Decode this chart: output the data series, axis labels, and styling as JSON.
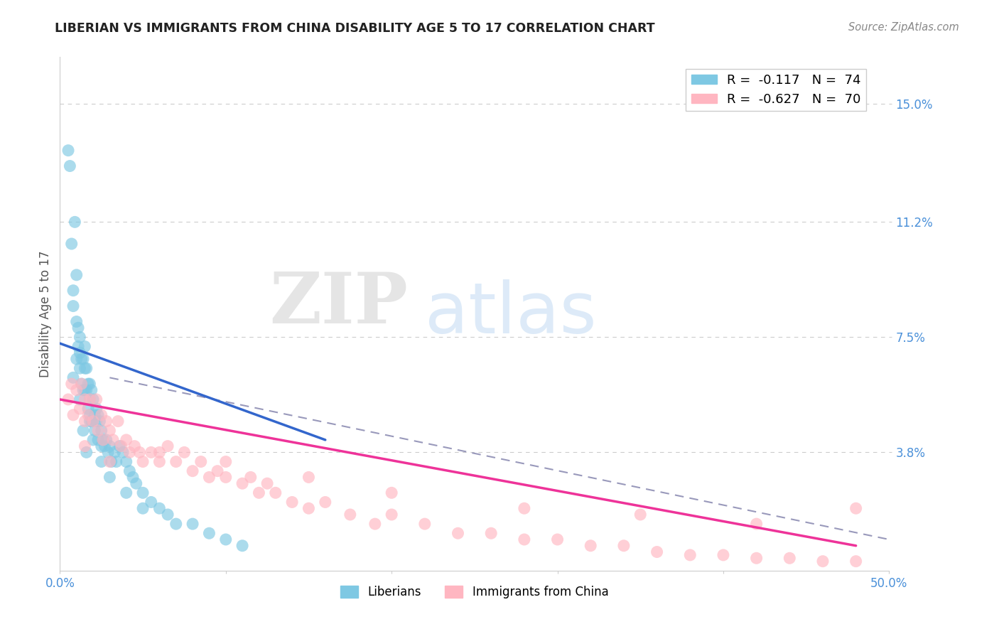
{
  "title": "LIBERIAN VS IMMIGRANTS FROM CHINA DISABILITY AGE 5 TO 17 CORRELATION CHART",
  "source": "Source: ZipAtlas.com",
  "ylabel": "Disability Age 5 to 17",
  "xlim": [
    0.0,
    0.5
  ],
  "ylim": [
    0.0,
    0.165
  ],
  "yticks": [
    0.038,
    0.075,
    0.112,
    0.15
  ],
  "ytick_labels": [
    "3.8%",
    "7.5%",
    "11.2%",
    "15.0%"
  ],
  "xticks": [
    0.0,
    0.1,
    0.2,
    0.3,
    0.4,
    0.5
  ],
  "xtick_labels": [
    "0.0%",
    "",
    "",
    "",
    "",
    "50.0%"
  ],
  "color_blue": "#7EC8E3",
  "color_pink": "#FFB6C1",
  "color_blue_line": "#3366CC",
  "color_pink_line": "#EE3399",
  "color_dashed": "#9999BB",
  "watermark_zip": "ZIP",
  "watermark_atlas": "atlas",
  "blue_line_x": [
    0.0,
    0.16
  ],
  "blue_line_y": [
    0.073,
    0.042
  ],
  "pink_line_x": [
    0.0,
    0.48
  ],
  "pink_line_y": [
    0.055,
    0.008
  ],
  "dashed_line_x": [
    0.03,
    0.5
  ],
  "dashed_line_y": [
    0.062,
    0.01
  ],
  "liberian_x": [
    0.005,
    0.006,
    0.007,
    0.008,
    0.008,
    0.009,
    0.01,
    0.01,
    0.011,
    0.011,
    0.012,
    0.012,
    0.012,
    0.013,
    0.013,
    0.014,
    0.014,
    0.015,
    0.015,
    0.015,
    0.016,
    0.016,
    0.017,
    0.017,
    0.018,
    0.018,
    0.018,
    0.019,
    0.019,
    0.02,
    0.02,
    0.021,
    0.021,
    0.022,
    0.022,
    0.023,
    0.023,
    0.024,
    0.025,
    0.025,
    0.026,
    0.027,
    0.028,
    0.029,
    0.03,
    0.031,
    0.033,
    0.034,
    0.036,
    0.038,
    0.04,
    0.042,
    0.044,
    0.046,
    0.05,
    0.055,
    0.06,
    0.065,
    0.07,
    0.08,
    0.09,
    0.1,
    0.11,
    0.008,
    0.01,
    0.012,
    0.014,
    0.016,
    0.018,
    0.02,
    0.025,
    0.03,
    0.04,
    0.05
  ],
  "liberian_y": [
    0.135,
    0.13,
    0.105,
    0.09,
    0.085,
    0.112,
    0.095,
    0.08,
    0.078,
    0.072,
    0.07,
    0.075,
    0.065,
    0.068,
    0.06,
    0.068,
    0.058,
    0.072,
    0.065,
    0.058,
    0.065,
    0.058,
    0.06,
    0.052,
    0.06,
    0.055,
    0.05,
    0.058,
    0.048,
    0.055,
    0.048,
    0.05,
    0.045,
    0.052,
    0.048,
    0.05,
    0.042,
    0.048,
    0.045,
    0.04,
    0.042,
    0.04,
    0.042,
    0.038,
    0.04,
    0.035,
    0.038,
    0.035,
    0.04,
    0.038,
    0.035,
    0.032,
    0.03,
    0.028,
    0.025,
    0.022,
    0.02,
    0.018,
    0.015,
    0.015,
    0.012,
    0.01,
    0.008,
    0.062,
    0.068,
    0.055,
    0.045,
    0.038,
    0.048,
    0.042,
    0.035,
    0.03,
    0.025,
    0.02
  ],
  "china_x": [
    0.005,
    0.007,
    0.008,
    0.01,
    0.012,
    0.013,
    0.015,
    0.015,
    0.017,
    0.018,
    0.02,
    0.022,
    0.023,
    0.025,
    0.026,
    0.028,
    0.03,
    0.032,
    0.035,
    0.037,
    0.04,
    0.042,
    0.045,
    0.048,
    0.05,
    0.055,
    0.06,
    0.065,
    0.07,
    0.075,
    0.08,
    0.085,
    0.09,
    0.095,
    0.1,
    0.11,
    0.115,
    0.12,
    0.125,
    0.13,
    0.14,
    0.15,
    0.16,
    0.175,
    0.19,
    0.2,
    0.22,
    0.24,
    0.26,
    0.28,
    0.3,
    0.32,
    0.34,
    0.36,
    0.38,
    0.4,
    0.42,
    0.44,
    0.46,
    0.48,
    0.015,
    0.03,
    0.06,
    0.1,
    0.15,
    0.2,
    0.28,
    0.35,
    0.42,
    0.48
  ],
  "china_y": [
    0.055,
    0.06,
    0.05,
    0.058,
    0.052,
    0.06,
    0.048,
    0.055,
    0.05,
    0.055,
    0.048,
    0.055,
    0.045,
    0.05,
    0.042,
    0.048,
    0.045,
    0.042,
    0.048,
    0.04,
    0.042,
    0.038,
    0.04,
    0.038,
    0.035,
    0.038,
    0.035,
    0.04,
    0.035,
    0.038,
    0.032,
    0.035,
    0.03,
    0.032,
    0.03,
    0.028,
    0.03,
    0.025,
    0.028,
    0.025,
    0.022,
    0.02,
    0.022,
    0.018,
    0.015,
    0.018,
    0.015,
    0.012,
    0.012,
    0.01,
    0.01,
    0.008,
    0.008,
    0.006,
    0.005,
    0.005,
    0.004,
    0.004,
    0.003,
    0.003,
    0.04,
    0.035,
    0.038,
    0.035,
    0.03,
    0.025,
    0.02,
    0.018,
    0.015,
    0.02
  ]
}
